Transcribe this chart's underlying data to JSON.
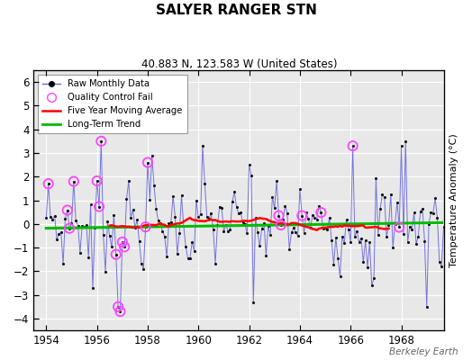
{
  "title": "SALYER RANGER STN",
  "subtitle": "40.883 N, 123.583 W (United States)",
  "ylabel": "Temperature Anomaly (°C)",
  "watermark": "Berkeley Earth",
  "xlim": [
    1953.5,
    1969.7
  ],
  "ylim": [
    -4.5,
    6.5
  ],
  "yticks": [
    -4,
    -3,
    -2,
    -1,
    0,
    1,
    2,
    3,
    4,
    5,
    6
  ],
  "xticks": [
    1954,
    1956,
    1958,
    1960,
    1962,
    1964,
    1966,
    1968
  ],
  "bg_color": "#e8e8e8",
  "grid_color": "white",
  "raw_line_color": "#6666dd",
  "raw_marker_color": "#111111",
  "ma_color": "red",
  "trend_color": "#00bb00",
  "qc_color": "#ff44ff",
  "trend_slope": 0.015,
  "trend_intercept": -0.18
}
